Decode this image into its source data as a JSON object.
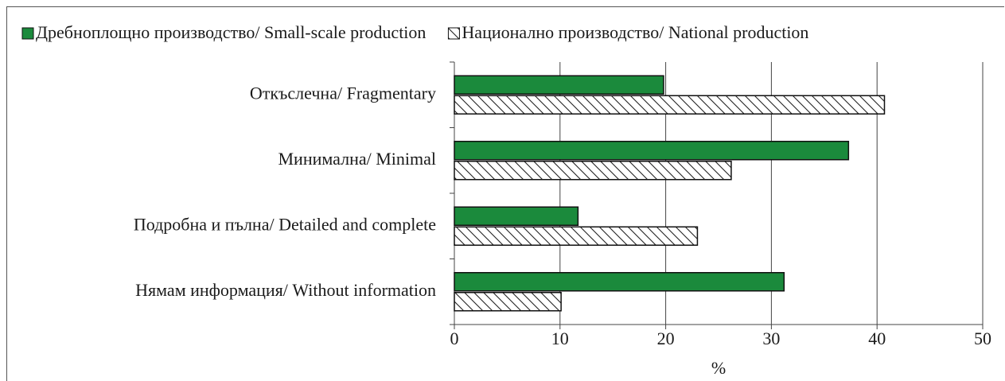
{
  "chart_data": {
    "type": "hbar",
    "categories": [
      "Откъслечна/ Fragmentary",
      "Минимална/ Minimal",
      "Подробна и пълна/ Detailed and complete",
      "Нямам информация/ Without information"
    ],
    "series": [
      {
        "name": "Дребноплощно производство/ Small-scale production",
        "color": "#1b8a3c",
        "values": [
          19.8,
          37.3,
          11.7,
          31.2
        ]
      },
      {
        "name": "Национално производство/ National production",
        "color": "#ffffff",
        "hatch": true,
        "values": [
          40.7,
          26.2,
          23.0,
          10.1
        ]
      }
    ],
    "x_label": "%",
    "xlim": [
      0,
      50
    ],
    "xticks": [
      0,
      10,
      20,
      30,
      40,
      50
    ],
    "grid": true,
    "legend": "top"
  }
}
